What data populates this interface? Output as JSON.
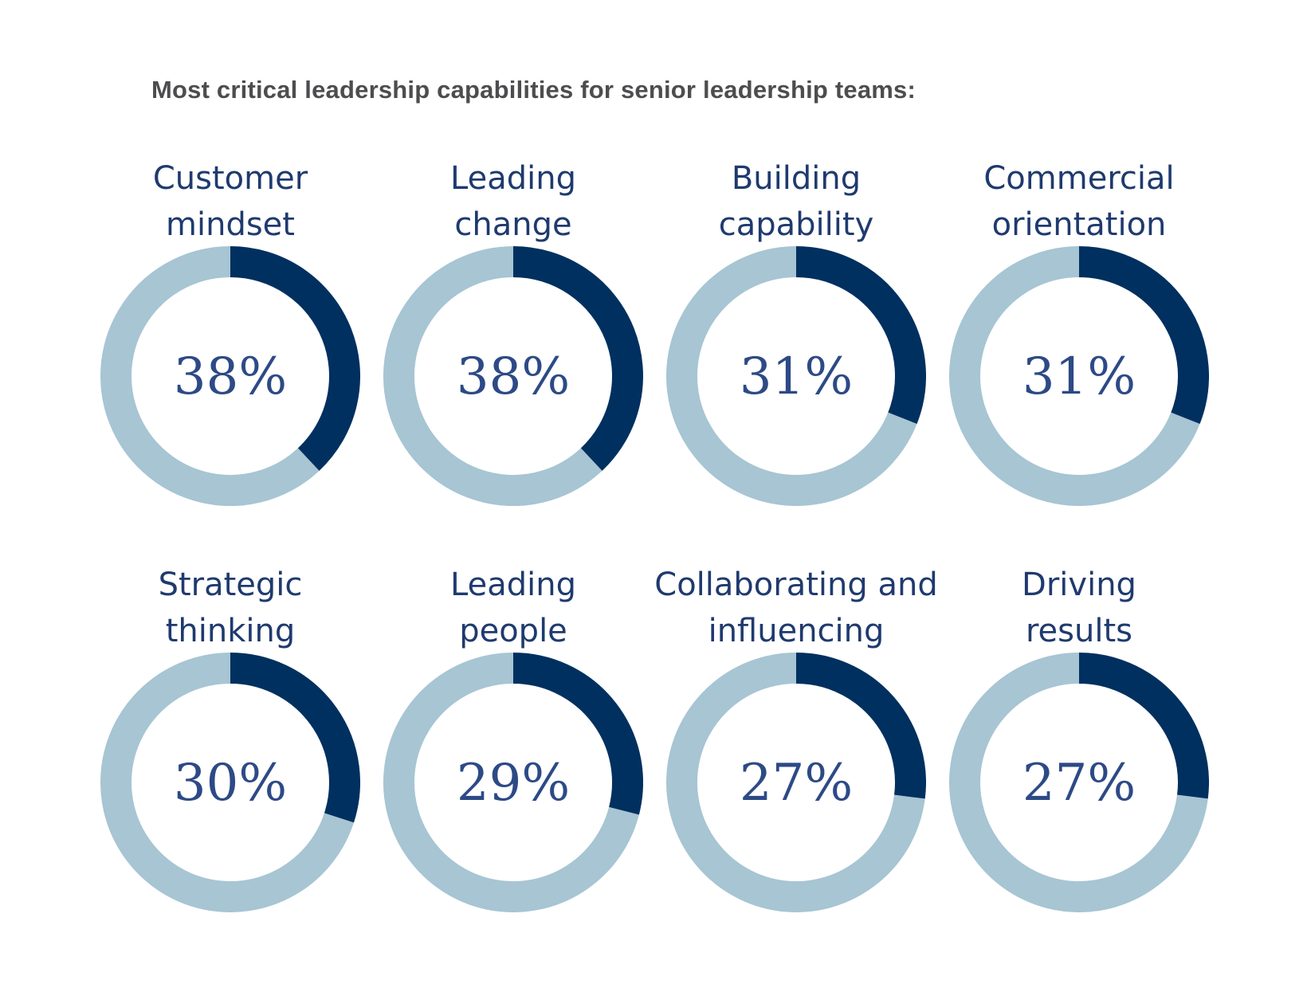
{
  "title": "Most critical leadership capabilities for senior leadership teams:",
  "colors": {
    "filled": "#00305f",
    "remaining": "#a7c5d3",
    "label_text": "#1f3a6e",
    "percent_text": "#2d4a86",
    "title_text": "#4d4d4f"
  },
  "chart_data": {
    "type": "pie",
    "variant": "donut-grid",
    "title": "Most critical leadership capabilities for senior leadership teams:",
    "categories": [
      "Customer mindset",
      "Leading change",
      "Building capability",
      "Commercial orientation",
      "Strategic thinking",
      "Leading people",
      "Collaborating and influencing",
      "Driving results"
    ],
    "values": [
      38,
      38,
      31,
      31,
      30,
      29,
      27,
      27
    ],
    "unit": "%",
    "items": [
      {
        "label_lines": [
          "Customer",
          "mindset"
        ],
        "value": 38,
        "display": "38%"
      },
      {
        "label_lines": [
          "Leading",
          "change"
        ],
        "value": 38,
        "display": "38%"
      },
      {
        "label_lines": [
          "Building",
          "capability"
        ],
        "value": 31,
        "display": "31%"
      },
      {
        "label_lines": [
          "Commercial",
          "orientation"
        ],
        "value": 31,
        "display": "31%"
      },
      {
        "label_lines": [
          "Strategic",
          "thinking"
        ],
        "value": 30,
        "display": "30%"
      },
      {
        "label_lines": [
          "Leading",
          "people"
        ],
        "value": 29,
        "display": "29%"
      },
      {
        "label_lines": [
          "Collaborating and",
          "influencing"
        ],
        "value": 27,
        "display": "27%"
      },
      {
        "label_lines": [
          "Driving",
          "results"
        ],
        "value": 27,
        "display": "27%"
      }
    ]
  }
}
